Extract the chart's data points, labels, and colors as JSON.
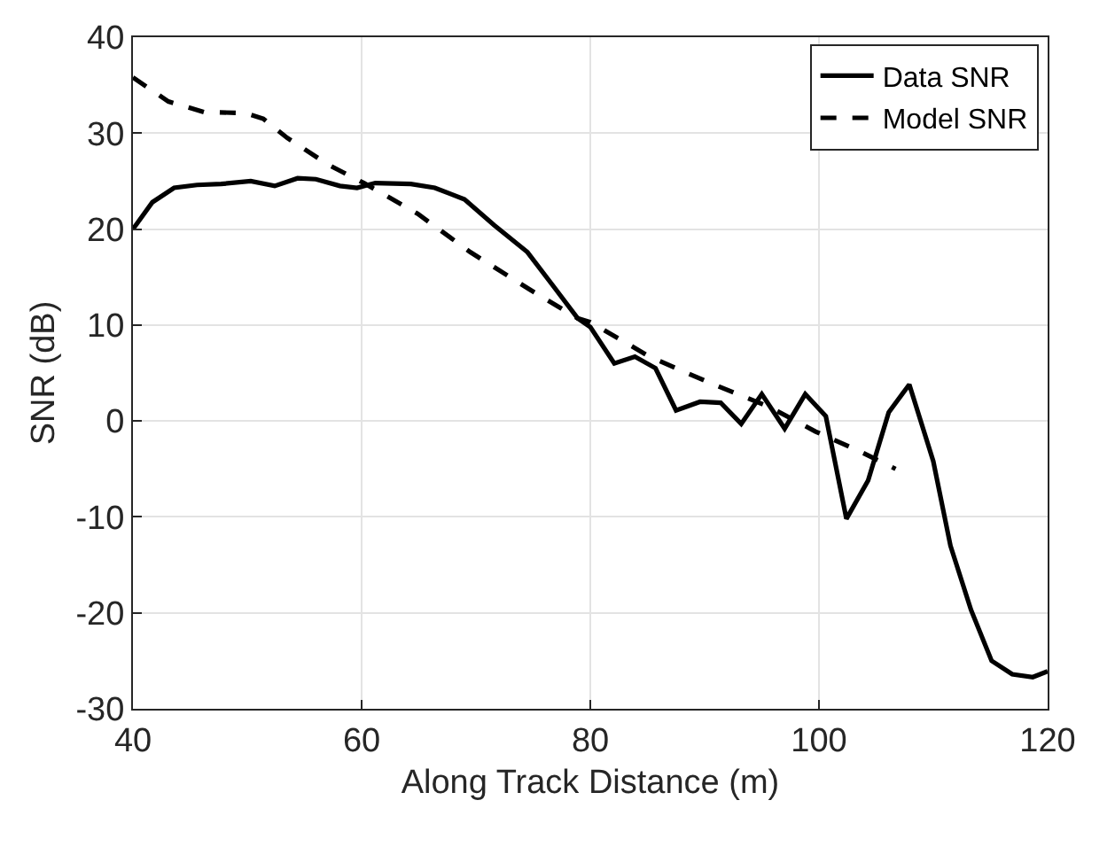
{
  "chart_data": {
    "type": "line",
    "xlabel": "Along Track Distance (m)",
    "ylabel": "SNR (dB)",
    "xlim": [
      40,
      120
    ],
    "xticks": [
      40,
      60,
      80,
      100,
      120
    ],
    "ylim": [
      -30,
      40
    ],
    "yticks": [
      -30,
      -20,
      -10,
      0,
      10,
      20,
      30,
      40
    ],
    "grid": true,
    "legend": "top right",
    "series": [
      {
        "name": "Data SNR",
        "color": "#000000",
        "line_style": "solid",
        "x": [
          40,
          41.7,
          43.6,
          45.6,
          47.7,
          50.3,
          52.4,
          54.4,
          56,
          58.1,
          59.6,
          61.2,
          64.3,
          66.4,
          69,
          71.6,
          74.5,
          76.8,
          78.9,
          80,
          82.1,
          83.9,
          85.7,
          87.5,
          89.6,
          91.4,
          93.2,
          95,
          97,
          98.8,
          100.6,
          102.4,
          104.3,
          106.1,
          107.9,
          110,
          111.5,
          113.3,
          115.1,
          116.9,
          118.7,
          120
        ],
        "values": [
          20,
          22.8,
          24.3,
          24.6,
          24.7,
          25,
          24.5,
          25.3,
          25.2,
          24.5,
          24.3,
          24.8,
          24.7,
          24.3,
          23.1,
          20.4,
          17.6,
          14,
          10.7,
          9.8,
          6,
          6.7,
          5.5,
          1.1,
          2,
          1.9,
          -0.3,
          2.8,
          -0.8,
          2.8,
          0.5,
          -10.2,
          -6.2,
          0.9,
          3.8,
          -4.2,
          -13,
          -19.7,
          -25,
          -26.4,
          -26.7,
          -26.1
        ]
      },
      {
        "name": "Model SNR",
        "color": "#000000",
        "line_style": "dashed",
        "x": [
          40,
          43.1,
          46.2,
          49.8,
          51.4,
          53.5,
          57.1,
          60.2,
          64.9,
          69.5,
          74.7,
          78.9,
          80,
          85.2,
          90.4,
          95.6,
          99.7,
          103.8,
          106.7
        ],
        "values": [
          35.8,
          33.3,
          32.2,
          32.1,
          31.5,
          29.5,
          26.7,
          24.8,
          21.6,
          17.6,
          13.7,
          10.7,
          10.3,
          6.7,
          4,
          1.5,
          -1.1,
          -3.3,
          -5
        ]
      }
    ]
  }
}
